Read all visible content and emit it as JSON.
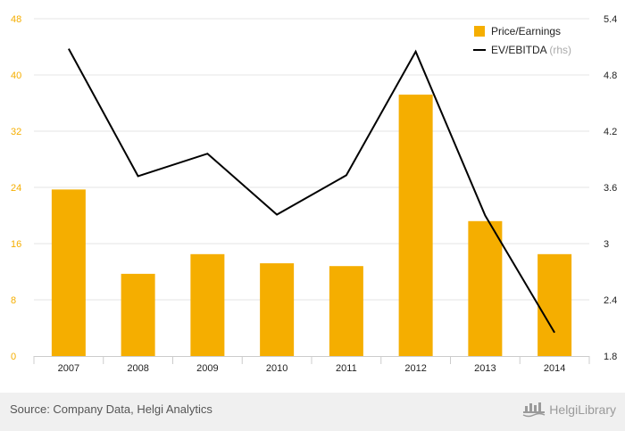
{
  "chart_data": {
    "type": "bar",
    "categories": [
      "2007",
      "2008",
      "2009",
      "2010",
      "2011",
      "2012",
      "2013",
      "2014"
    ],
    "series": [
      {
        "name": "Price/Earnings",
        "type": "bar",
        "axis": "left",
        "color": "#f5ae00",
        "values": [
          23.7,
          11.7,
          14.5,
          13.2,
          12.8,
          37.2,
          19.2,
          14.5
        ]
      },
      {
        "name": "EV/EBITDA",
        "name_suffix": "(rhs)",
        "type": "line",
        "axis": "right",
        "color": "#000000",
        "values": [
          5.08,
          3.72,
          3.96,
          3.31,
          3.73,
          5.05,
          3.3,
          2.05
        ]
      }
    ],
    "y_left": {
      "min": 0,
      "max": 48,
      "ticks": [
        0,
        8,
        16,
        24,
        32,
        40,
        48
      ],
      "tick_color": "#f5ae00"
    },
    "y_right": {
      "min": 1.8,
      "max": 5.4,
      "ticks": [
        "1.8",
        "2.4",
        "3",
        "3.6",
        "4.2",
        "4.8",
        "5.4"
      ]
    },
    "grid": true,
    "legend_position": "top-right"
  },
  "footer": {
    "source": "Source: Company Data, Helgi Analytics",
    "brand": "HelgiLibrary",
    "brand_icon": "helgi-logo-icon"
  }
}
